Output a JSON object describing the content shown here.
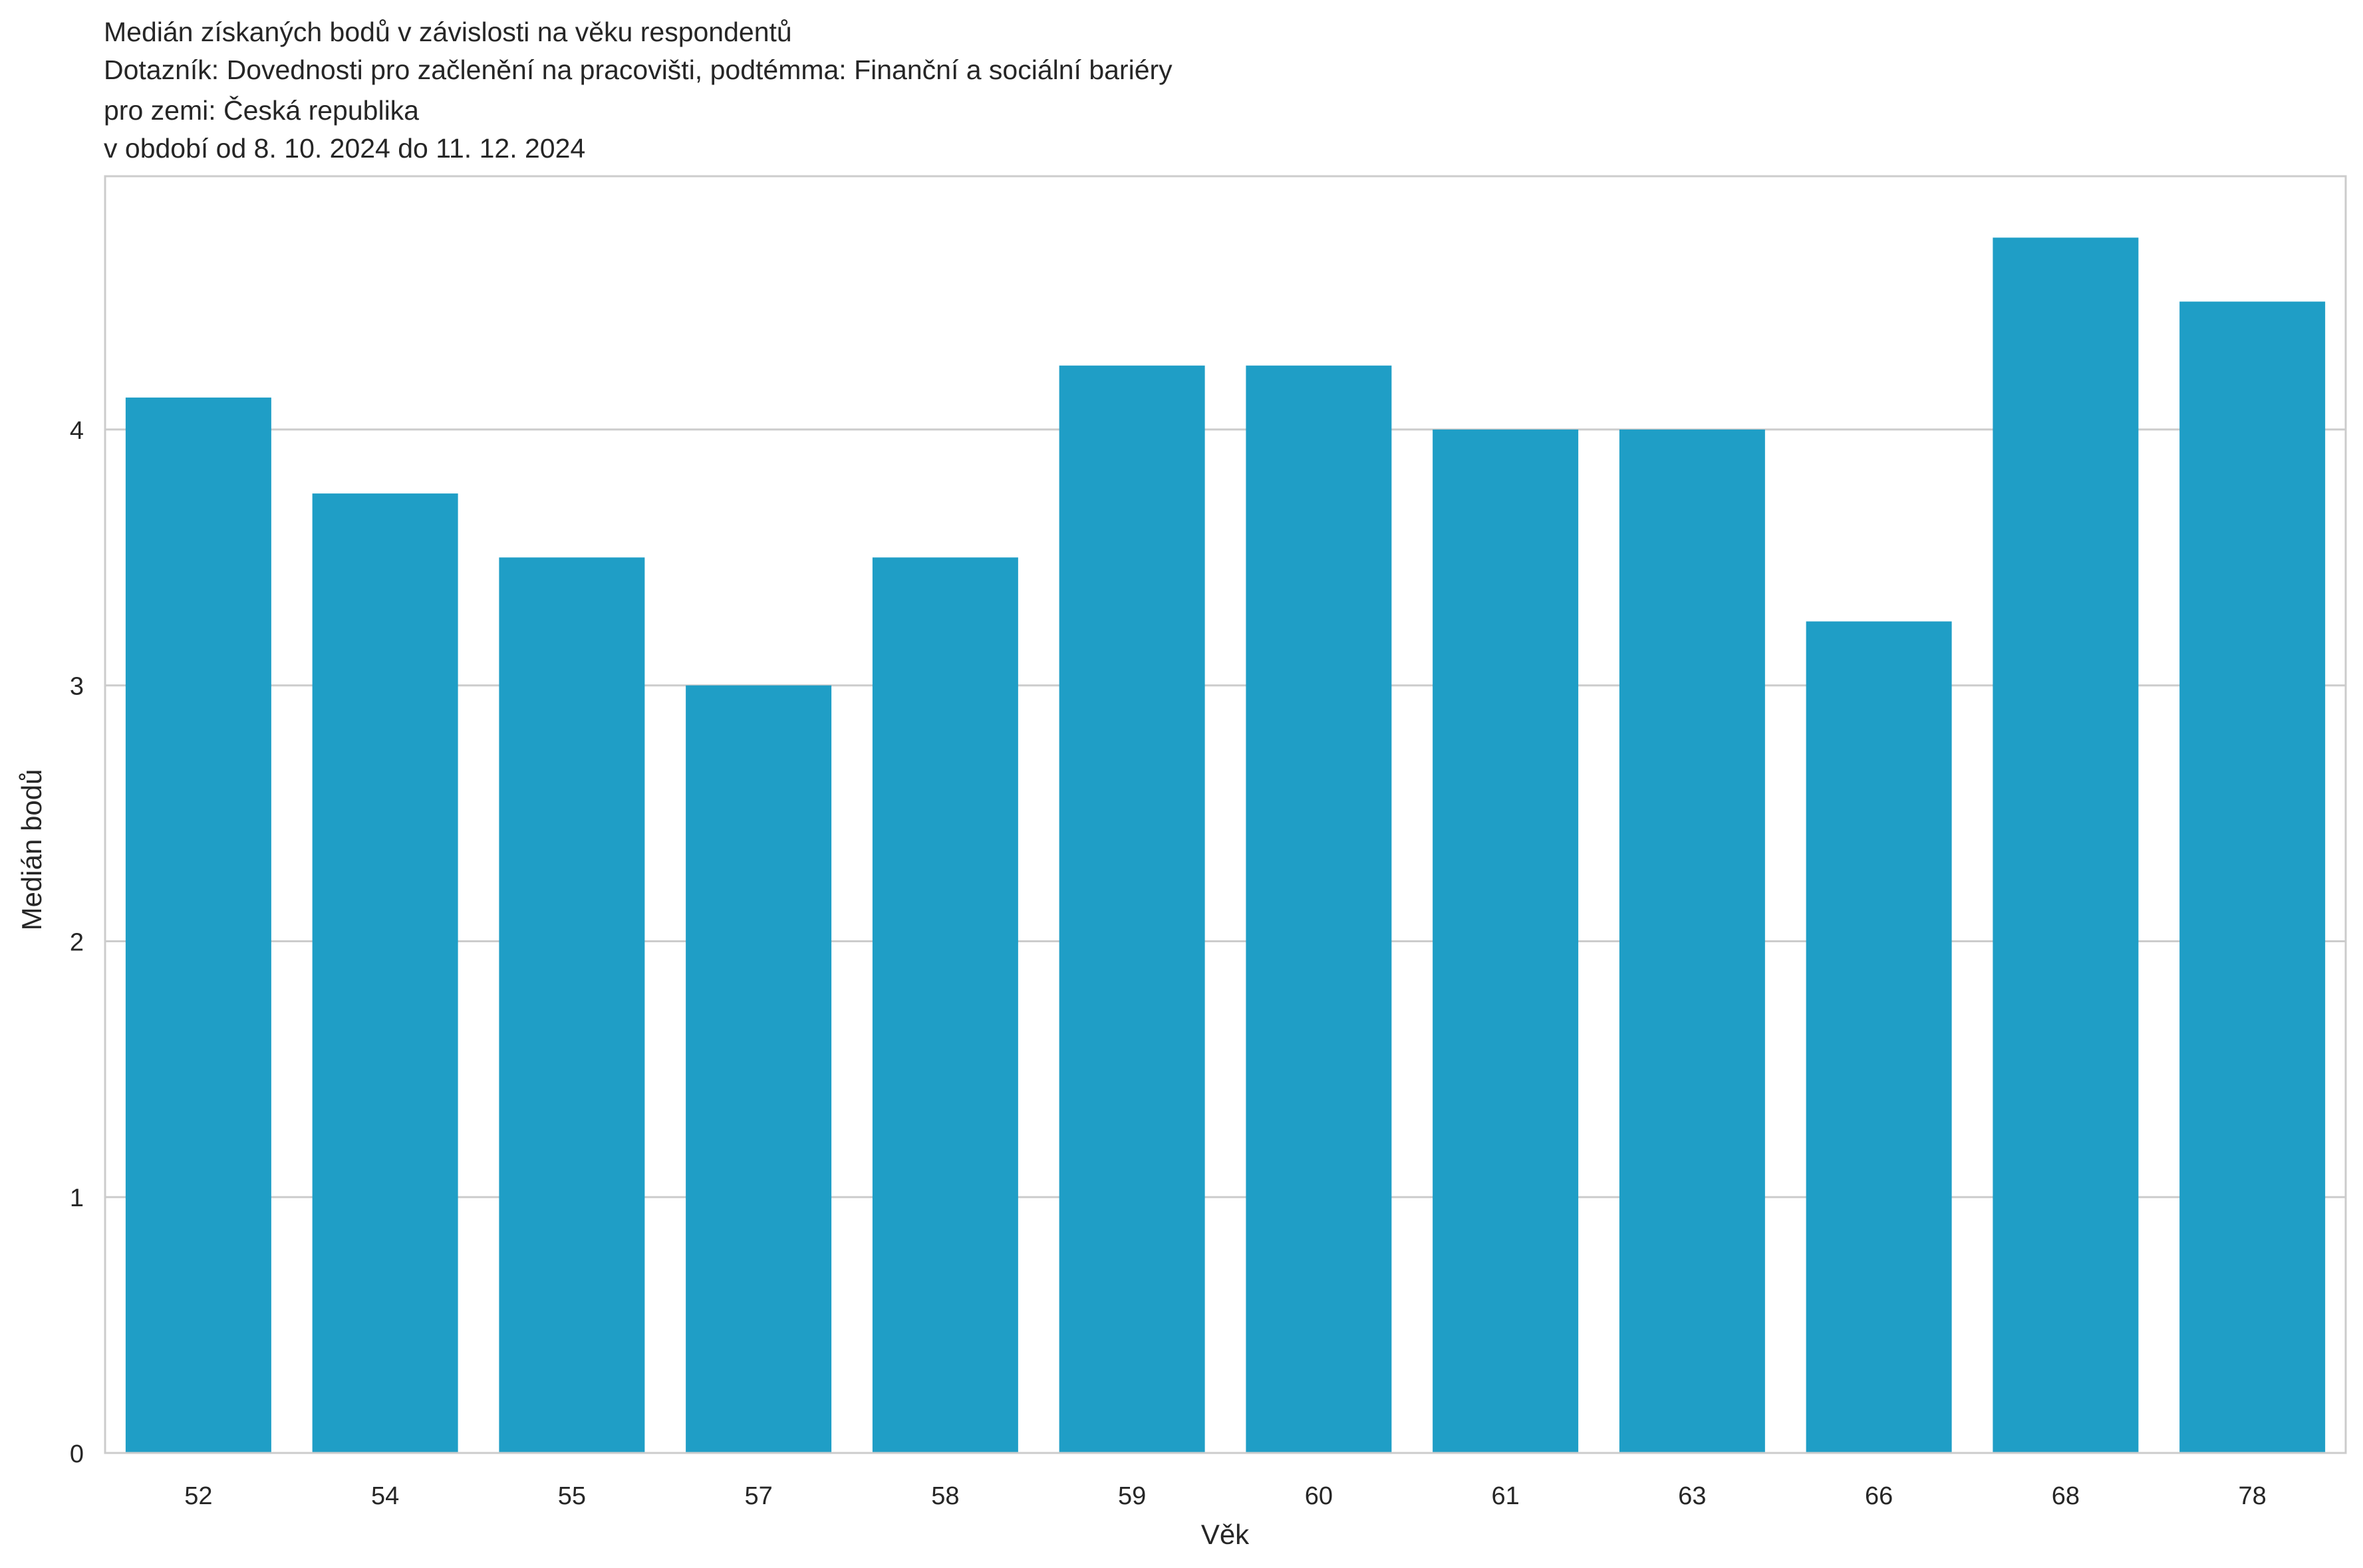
{
  "chart_data": {
    "type": "bar",
    "title_lines": [
      "Medián získaných bodů v závislosti na věku respondentů",
      "Dotazník: Dovednosti pro začlenění na pracovišti, podtémma: Finanční a sociální bariéry",
      "pro zemi: Česká republika",
      "v období od 8. 10. 2024 do 11. 12. 2024"
    ],
    "xlabel": "Věk",
    "ylabel": "Medián bodů",
    "categories": [
      "52",
      "54",
      "55",
      "57",
      "58",
      "59",
      "60",
      "61",
      "63",
      "66",
      "68",
      "78"
    ],
    "values": [
      4.125,
      3.75,
      3.5,
      3.0,
      3.5,
      4.25,
      4.25,
      4.0,
      4.0,
      3.25,
      4.75,
      4.5
    ],
    "yticks": [
      0,
      1,
      2,
      3,
      4
    ],
    "ytick_labels": [
      "0",
      "1",
      "2",
      "3",
      "4"
    ],
    "ylim": [
      0,
      4.99
    ],
    "grid": "horizontal",
    "bar_color": "#1f9ec6",
    "grid_color": "#cccccc",
    "frame_color": "#cccccc"
  }
}
